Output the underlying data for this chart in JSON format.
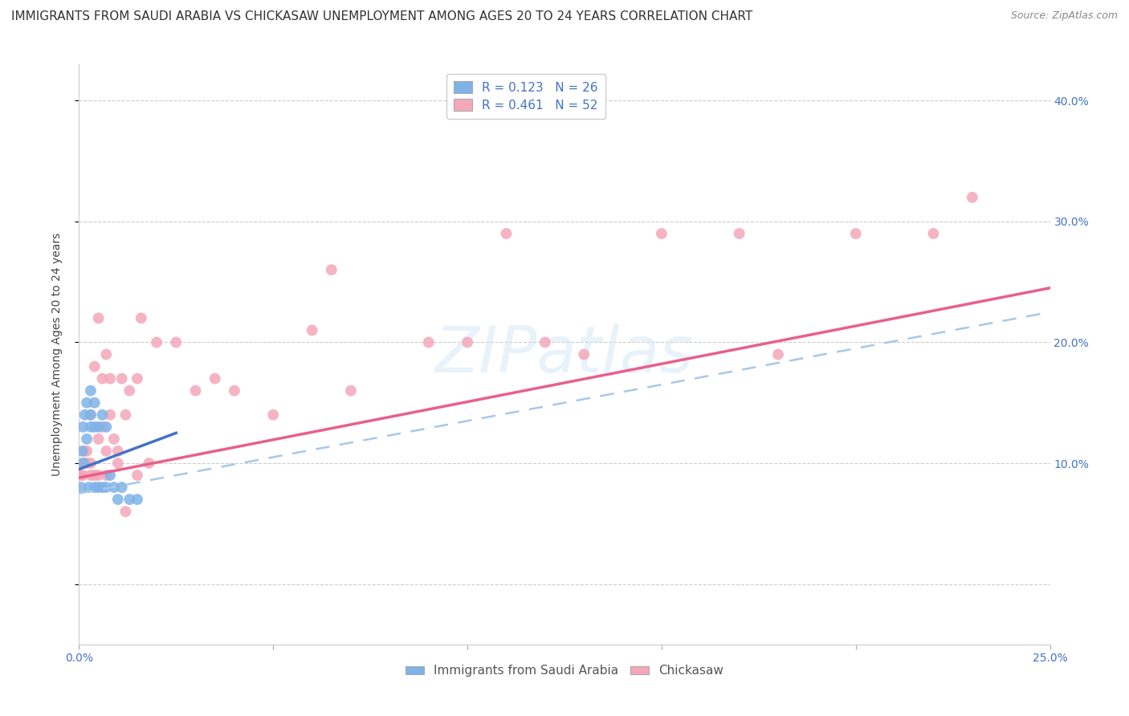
{
  "title": "IMMIGRANTS FROM SAUDI ARABIA VS CHICKASAW UNEMPLOYMENT AMONG AGES 20 TO 24 YEARS CORRELATION CHART",
  "source": "Source: ZipAtlas.com",
  "watermark": "ZIPatlas",
  "legend_entry_1": "R = 0.123   N = 26",
  "legend_entry_2": "R = 0.461   N = 52",
  "ylabel_left": "Unemployment Among Ages 20 to 24 years",
  "bottom_legend": [
    "Immigrants from Saudi Arabia",
    "Chickasaw"
  ],
  "xlim": [
    0.0,
    0.25
  ],
  "ylim": [
    -0.05,
    0.43
  ],
  "y_ticks": [
    0.0,
    0.1,
    0.2,
    0.3,
    0.4
  ],
  "x_ticks": [
    0.0,
    0.05,
    0.1,
    0.15,
    0.2,
    0.25
  ],
  "blue_scatter_x": [
    0.0005,
    0.0008,
    0.001,
    0.0012,
    0.0015,
    0.002,
    0.002,
    0.0025,
    0.003,
    0.003,
    0.003,
    0.004,
    0.004,
    0.004,
    0.005,
    0.005,
    0.006,
    0.006,
    0.007,
    0.007,
    0.008,
    0.009,
    0.01,
    0.011,
    0.013,
    0.015
  ],
  "blue_scatter_y": [
    0.08,
    0.11,
    0.13,
    0.1,
    0.14,
    0.12,
    0.15,
    0.08,
    0.13,
    0.14,
    0.16,
    0.13,
    0.15,
    0.08,
    0.13,
    0.08,
    0.14,
    0.08,
    0.13,
    0.08,
    0.09,
    0.08,
    0.07,
    0.08,
    0.07,
    0.07
  ],
  "pink_scatter_x": [
    0.0005,
    0.001,
    0.001,
    0.0015,
    0.002,
    0.002,
    0.003,
    0.003,
    0.004,
    0.004,
    0.005,
    0.005,
    0.006,
    0.006,
    0.007,
    0.007,
    0.008,
    0.008,
    0.009,
    0.01,
    0.011,
    0.012,
    0.013,
    0.015,
    0.016,
    0.018,
    0.02,
    0.025,
    0.03,
    0.035,
    0.04,
    0.05,
    0.06,
    0.065,
    0.07,
    0.09,
    0.1,
    0.11,
    0.12,
    0.13,
    0.15,
    0.17,
    0.18,
    0.2,
    0.22,
    0.23,
    0.003,
    0.005,
    0.007,
    0.01,
    0.012,
    0.015
  ],
  "pink_scatter_y": [
    0.09,
    0.09,
    0.1,
    0.11,
    0.1,
    0.11,
    0.1,
    0.14,
    0.09,
    0.18,
    0.12,
    0.22,
    0.13,
    0.17,
    0.11,
    0.19,
    0.14,
    0.17,
    0.12,
    0.11,
    0.17,
    0.14,
    0.16,
    0.17,
    0.22,
    0.1,
    0.2,
    0.2,
    0.16,
    0.17,
    0.16,
    0.14,
    0.21,
    0.26,
    0.16,
    0.2,
    0.2,
    0.29,
    0.2,
    0.19,
    0.29,
    0.29,
    0.19,
    0.29,
    0.29,
    0.32,
    0.09,
    0.09,
    0.09,
    0.1,
    0.06,
    0.09
  ],
  "blue_line_x": [
    0.0,
    0.025
  ],
  "blue_line_y": [
    0.095,
    0.125
  ],
  "pink_line_x": [
    0.0,
    0.25
  ],
  "pink_line_y": [
    0.088,
    0.245
  ],
  "dashed_line_x": [
    0.0,
    0.25
  ],
  "dashed_line_y": [
    0.075,
    0.225
  ],
  "scatter_size": 100,
  "blue_color": "#7fb3e8",
  "pink_color": "#f4a7b9",
  "blue_line_color": "#4472c4",
  "pink_line_color": "#e8608a",
  "dashed_line_color": "#a8c8e8",
  "background_color": "#ffffff",
  "grid_color": "#cccccc",
  "tick_color": "#4472c4",
  "title_fontsize": 11,
  "axis_label_fontsize": 10,
  "tick_fontsize": 10,
  "legend_fontsize": 11
}
